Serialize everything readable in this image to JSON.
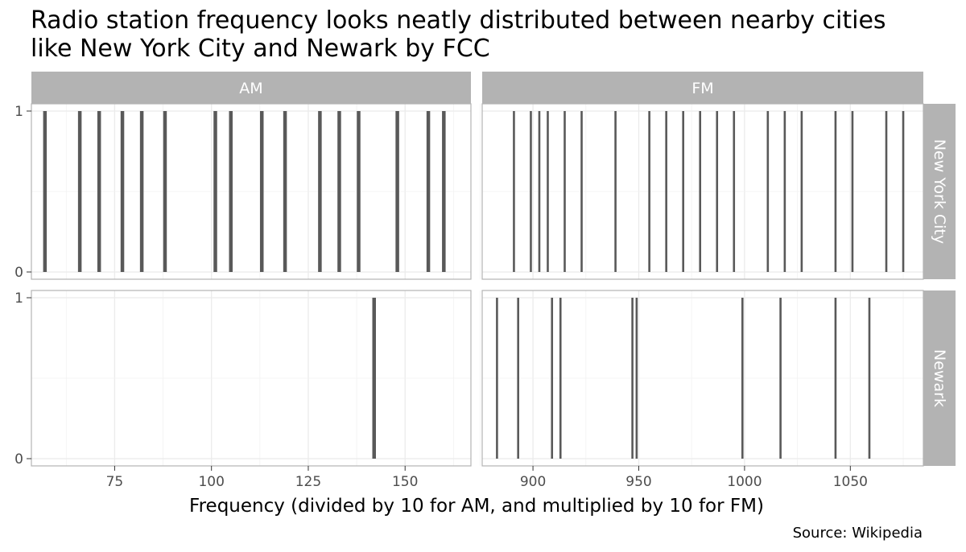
{
  "chart_data": {
    "type": "bar",
    "title_line1": "Radio station frequency looks neatly distributed between nearby cities",
    "title_line2": "like New York City and Newark by FCC",
    "xlabel": "Frequency (divided by 10 for AM, and multiplied by 10 for FM)",
    "caption": "Source: Wikipedia",
    "columns": [
      "AM",
      "FM"
    ],
    "rows": [
      "New York City",
      "Newark"
    ],
    "ylim": [
      0,
      1
    ],
    "y_ticks": [
      0,
      1
    ],
    "x_axes": {
      "AM": {
        "xlim": [
          53.5,
          167
        ],
        "ticks": [
          75,
          100,
          125,
          150
        ],
        "minor": [
          62.5,
          87.5,
          112.5,
          137.5,
          162.5
        ]
      },
      "FM": {
        "xlim": [
          876,
          1084.5
        ],
        "ticks": [
          900,
          950,
          1000,
          1050
        ],
        "tick_labels": [
          "900",
          "950",
          "1000",
          "1050"
        ],
        "minor": [
          875,
          925,
          975,
          1025,
          1075
        ]
      }
    },
    "series": [
      {
        "name": "New York City",
        "band": "AM",
        "x": [
          57,
          66,
          71,
          77,
          82,
          88,
          101,
          105,
          113,
          119,
          128,
          133,
          138,
          148,
          156,
          160
        ],
        "values": [
          1,
          1,
          1,
          1,
          1,
          1,
          1,
          1,
          1,
          1,
          1,
          1,
          1,
          1,
          1,
          1
        ]
      },
      {
        "name": "New York City",
        "band": "FM",
        "x": [
          891,
          899,
          903,
          907,
          915,
          923,
          939,
          955,
          963,
          971,
          979,
          987,
          995,
          1011,
          1019,
          1027,
          1043,
          1051,
          1067,
          1075
        ],
        "values": [
          1,
          1,
          1,
          1,
          1,
          1,
          1,
          1,
          1,
          1,
          1,
          1,
          1,
          1,
          1,
          1,
          1,
          1,
          1,
          1
        ]
      },
      {
        "name": "Newark",
        "band": "AM",
        "x": [
          142
        ],
        "values": [
          1
        ]
      },
      {
        "name": "Newark",
        "band": "FM",
        "x": [
          883,
          893,
          909,
          913,
          947,
          949,
          999,
          1017,
          1043,
          1059
        ],
        "values": [
          1,
          1,
          1,
          1,
          1,
          1,
          1,
          1,
          1,
          1
        ]
      }
    ],
    "colors": {
      "bar": "#595959",
      "strip": "#b3b3b3",
      "grid": "#ebebeb",
      "panel_border": "#b3b3b3"
    }
  }
}
